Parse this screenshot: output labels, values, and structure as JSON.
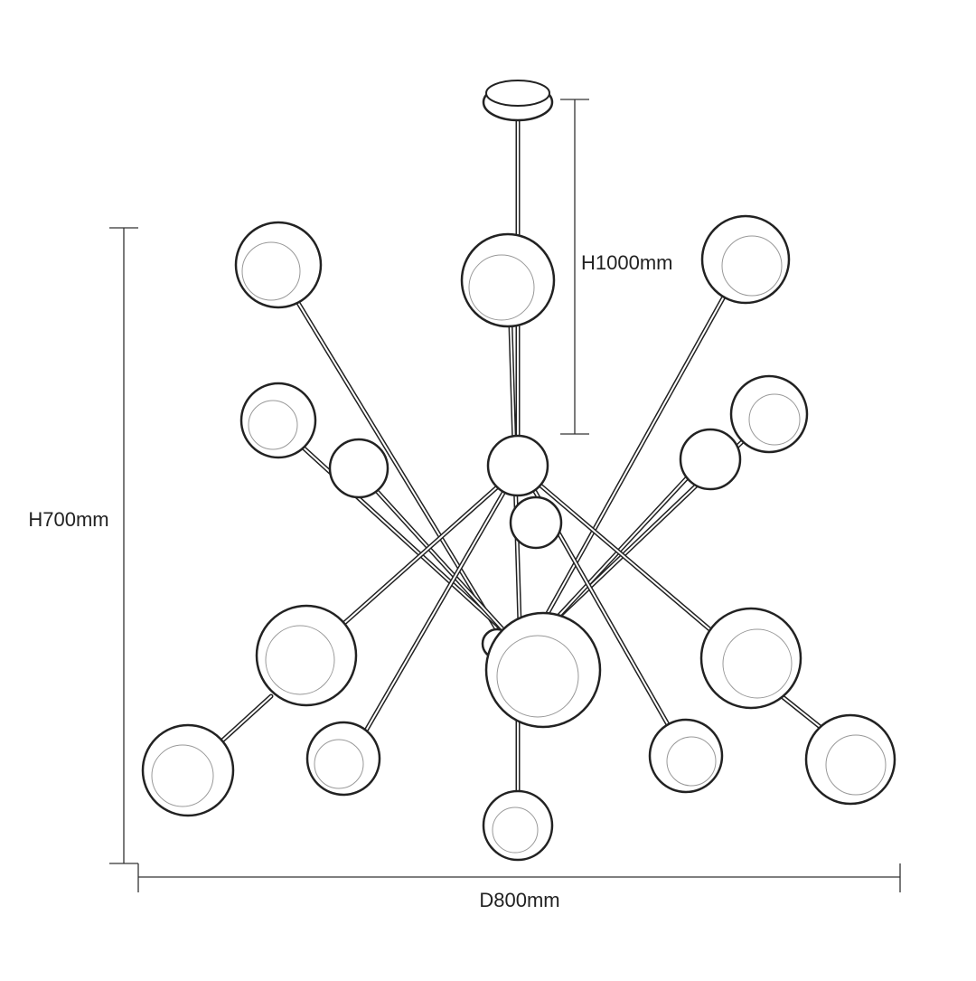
{
  "dimensions": {
    "height_total": "H1000mm",
    "height_body": "H700mm",
    "diameter": "D800mm"
  }
}
